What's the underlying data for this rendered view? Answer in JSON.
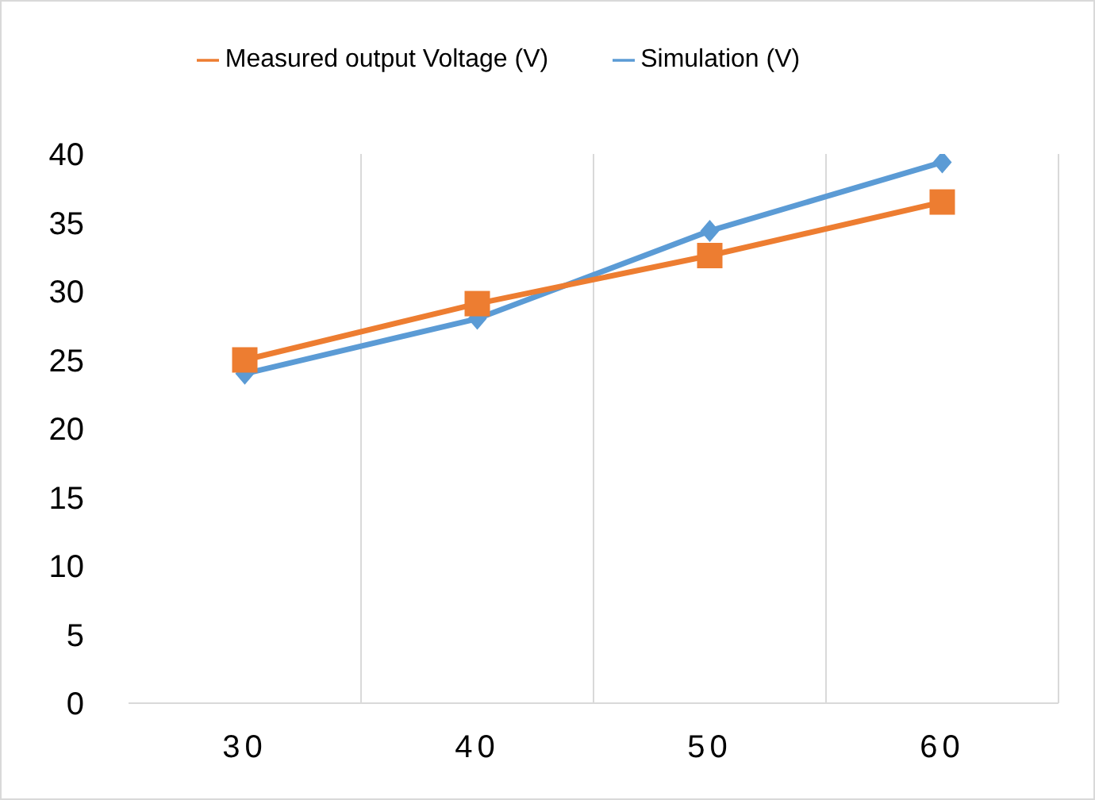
{
  "chart_data": {
    "type": "line",
    "categories": [
      "30",
      "40",
      "50",
      "60"
    ],
    "series": [
      {
        "name": "Simulation (V)",
        "color": "#5b9bd5",
        "values": [
          24,
          28,
          34.4,
          39.4
        ],
        "marker": "diamond"
      },
      {
        "name": "Measured output Voltage (V)",
        "color": "#ed7d31",
        "values": [
          25,
          29.1,
          32.6,
          36.5
        ],
        "marker": "square"
      }
    ],
    "ylim": [
      0,
      40
    ],
    "yticks": [
      0,
      5,
      10,
      15,
      20,
      25,
      30,
      35,
      40
    ],
    "grid": "x",
    "legend": "top"
  }
}
